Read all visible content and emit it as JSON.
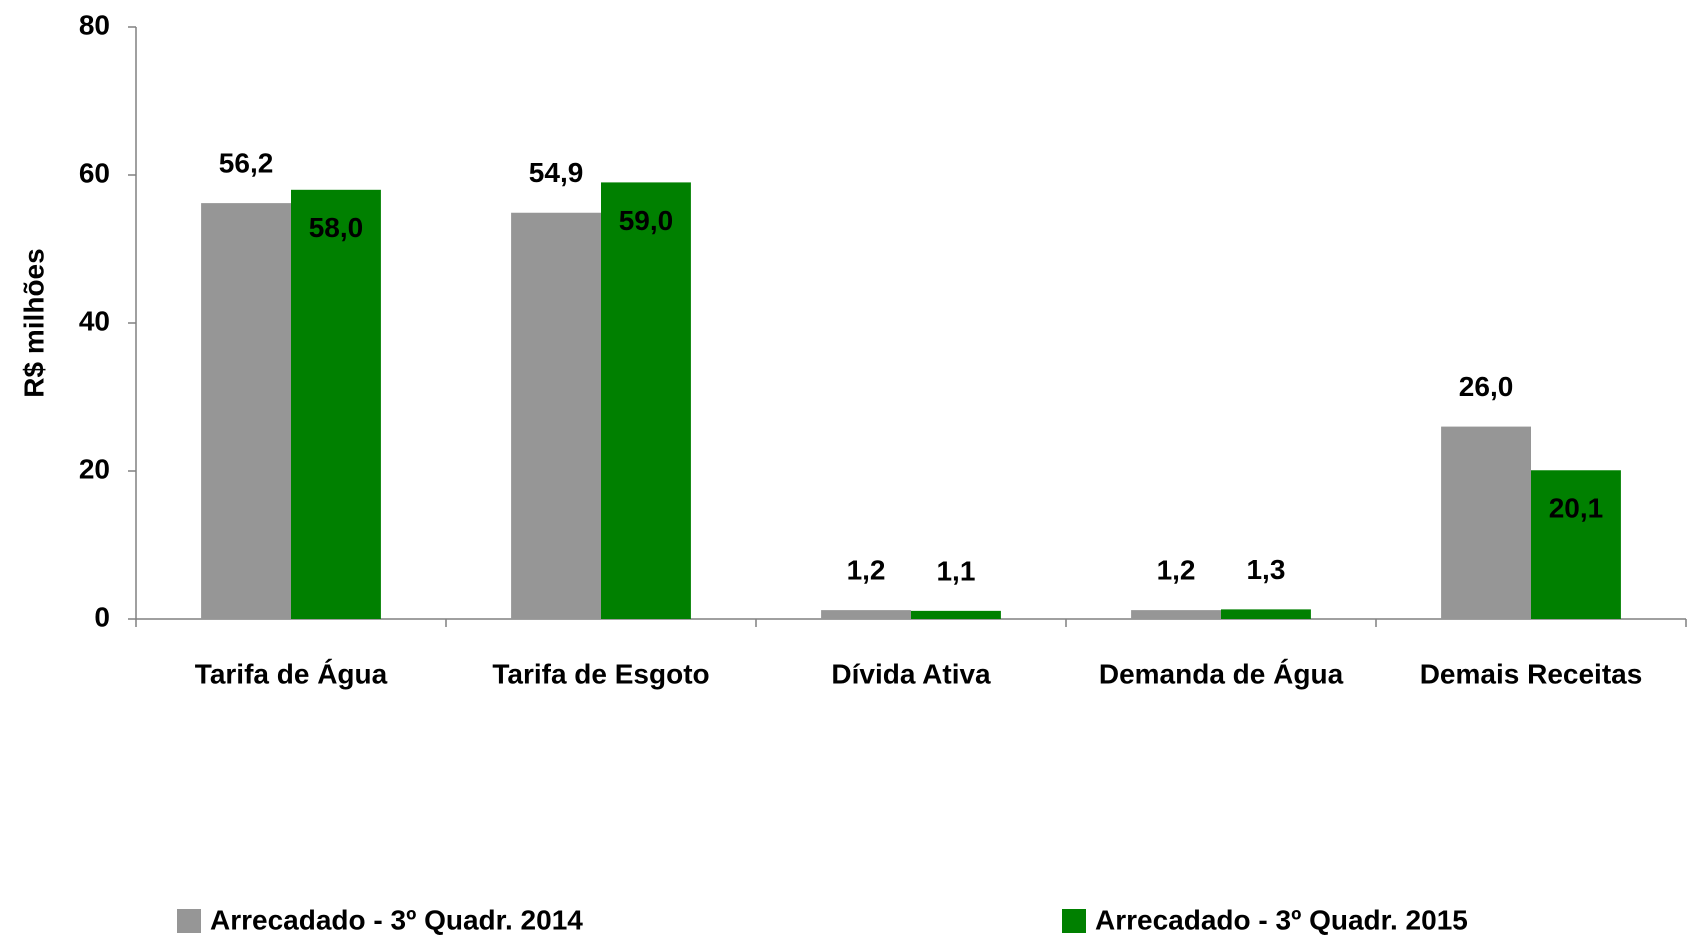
{
  "chart_data": {
    "type": "bar",
    "y_label": "R$ milhões",
    "categories": [
      "Tarifa de Água",
      "Tarifa de Esgoto",
      "Dívida Ativa",
      "Demanda de Água",
      "Demais Receitas"
    ],
    "series": [
      {
        "name": "Arrecadado - 3º Quadr. 2014",
        "color": "#969696",
        "values": [
          56.2,
          54.9,
          1.2,
          1.2,
          26.0
        ],
        "value_labels": [
          "56,2",
          "54,9",
          "1,2",
          "1,2",
          "26,0"
        ]
      },
      {
        "name": "Arrecadado - 3º Quadr. 2015",
        "color": "#008000",
        "values": [
          58.0,
          59.0,
          1.1,
          1.3,
          20.1
        ],
        "value_labels": [
          "58,0",
          "59,0",
          "1,1",
          "1,3",
          "20,1"
        ]
      }
    ],
    "ylim": [
      0,
      80
    ],
    "yticks": [
      0,
      20,
      40,
      60,
      80
    ],
    "grid": false,
    "legend": "bottom"
  }
}
